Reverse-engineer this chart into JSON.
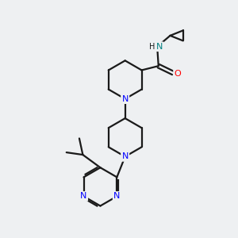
{
  "background_color": "#eef0f2",
  "bond_color": "#1a1a1a",
  "N_color": "#0000ff",
  "NH_color": "#008080",
  "O_color": "#ff0000",
  "figsize": [
    3.0,
    3.0
  ],
  "dpi": 100,
  "xlim": [
    0,
    10
  ],
  "ylim": [
    0,
    10
  ]
}
